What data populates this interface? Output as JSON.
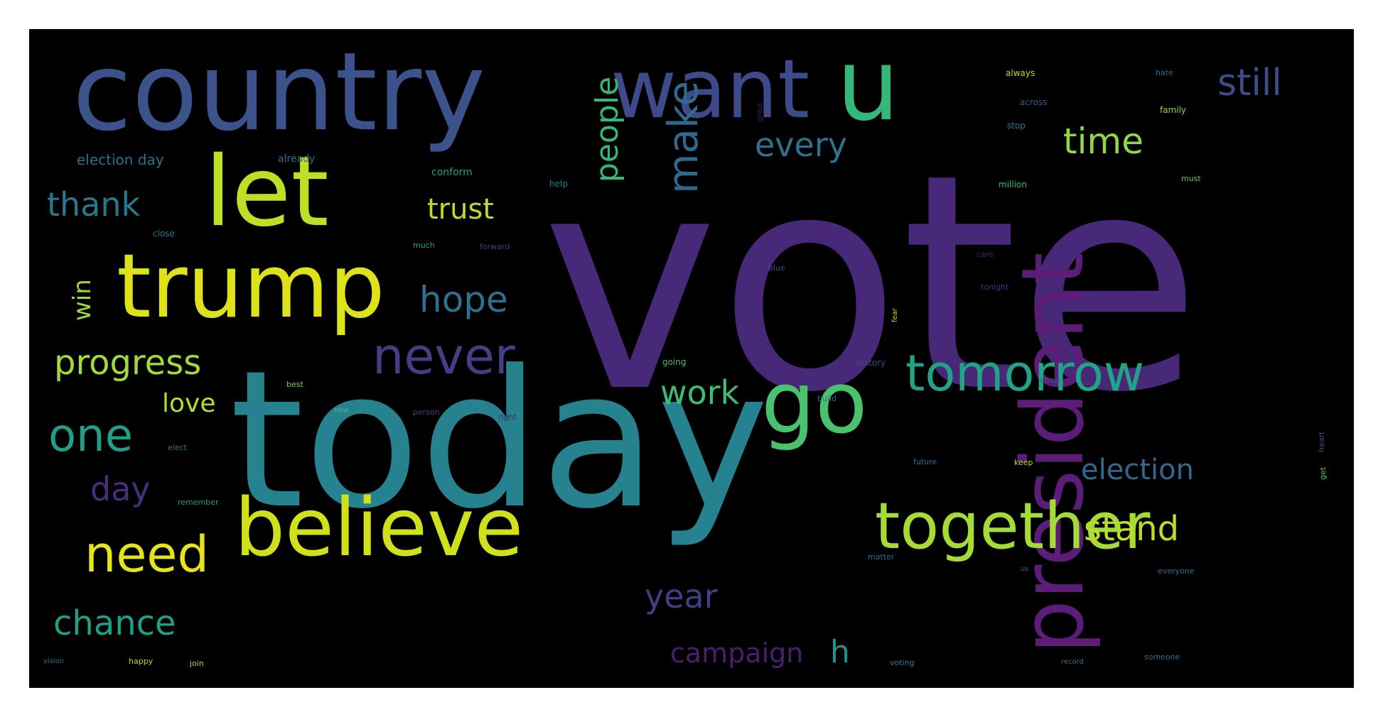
{
  "colors": {
    "background": "#000000",
    "page": "#ffffff"
  },
  "words": [
    {
      "text": "vote",
      "color": "#482878"
    },
    {
      "text": "today",
      "color": "#26828e"
    },
    {
      "text": "country",
      "color": "#3b528b"
    },
    {
      "text": "want",
      "color": "#3e4a89"
    },
    {
      "text": "u",
      "color": "#35b779"
    },
    {
      "text": "let",
      "color": "#bddf26"
    },
    {
      "text": "trump",
      "color": "#dde318"
    },
    {
      "text": "president",
      "color": "#5b1d78"
    },
    {
      "text": "believe",
      "color": "#d0e11c"
    },
    {
      "text": "together",
      "color": "#a5db36"
    },
    {
      "text": "go",
      "color": "#4ac16d"
    },
    {
      "text": "never",
      "color": "#433e85"
    },
    {
      "text": "tomorrow",
      "color": "#20a386"
    },
    {
      "text": "make",
      "color": "#31688e"
    },
    {
      "text": "people",
      "color": "#35b779"
    },
    {
      "text": "still",
      "color": "#3e4c8a"
    },
    {
      "text": "every",
      "color": "#2c728e"
    },
    {
      "text": "time",
      "color": "#8fd744"
    },
    {
      "text": "thank",
      "color": "#2a788e"
    },
    {
      "text": "trust",
      "color": "#b8de29"
    },
    {
      "text": "hope",
      "color": "#2c728e"
    },
    {
      "text": "progress",
      "color": "#a2da37"
    },
    {
      "text": "one",
      "color": "#1f9e89"
    },
    {
      "text": "love",
      "color": "#b5de2b"
    },
    {
      "text": "work",
      "color": "#3dbc74"
    },
    {
      "text": "need",
      "color": "#e5e419"
    },
    {
      "text": "day",
      "color": "#472d7b"
    },
    {
      "text": "win",
      "color": "#9bd93c"
    },
    {
      "text": "chance",
      "color": "#1fa088"
    },
    {
      "text": "year",
      "color": "#433e85"
    },
    {
      "text": "campaign",
      "color": "#481f70"
    },
    {
      "text": "h",
      "color": "#21918c"
    },
    {
      "text": "election",
      "color": "#31688e"
    },
    {
      "text": "stand",
      "color": "#bade28"
    },
    {
      "text": "election day",
      "color": "#2d708e"
    },
    {
      "text": "already",
      "color": "#2e6e8e"
    },
    {
      "text": "conform",
      "color": "#1fa088"
    },
    {
      "text": "help",
      "color": "#26828e"
    },
    {
      "text": "close",
      "color": "#2a788e"
    },
    {
      "text": "much",
      "color": "#20a386"
    },
    {
      "text": "forward",
      "color": "#443983"
    },
    {
      "text": "always",
      "color": "#b5de2b"
    },
    {
      "text": "across",
      "color": "#38598c"
    },
    {
      "text": "stop",
      "color": "#2a788e"
    },
    {
      "text": "great",
      "color": "#481c6e"
    },
    {
      "text": "hate",
      "color": "#2d708e"
    },
    {
      "text": "family",
      "color": "#8fd744"
    },
    {
      "text": "million",
      "color": "#3dbc74"
    },
    {
      "text": "must",
      "color": "#5ec962"
    },
    {
      "text": "care",
      "color": "#482071"
    },
    {
      "text": "blue",
      "color": "#3b528b"
    },
    {
      "text": "tonight",
      "color": "#46307e"
    },
    {
      "text": "fear",
      "color": "#b8de29"
    },
    {
      "text": "going",
      "color": "#3dbc74"
    },
    {
      "text": "history",
      "color": "#3e4a89"
    },
    {
      "text": "best",
      "color": "#75d054"
    },
    {
      "text": "show",
      "color": "#3b528b"
    },
    {
      "text": "new",
      "color": "#3dbc74"
    },
    {
      "text": "person",
      "color": "#414487"
    },
    {
      "text": "right",
      "color": "#482475"
    },
    {
      "text": "build",
      "color": "#2d708e"
    },
    {
      "text": "elect",
      "color": "#2a788e"
    },
    {
      "text": "future",
      "color": "#31688e"
    },
    {
      "text": "keep",
      "color": "#b8de29"
    },
    {
      "text": "heart",
      "color": "#3e4a89"
    },
    {
      "text": "remember",
      "color": "#1f9e89"
    },
    {
      "text": "get",
      "color": "#4ac16d"
    },
    {
      "text": "matter",
      "color": "#2e6e8e"
    },
    {
      "text": "us",
      "color": "#3b528b"
    },
    {
      "text": "everyone",
      "color": "#2d708e"
    },
    {
      "text": "vision",
      "color": "#2e6e8e"
    },
    {
      "text": "happy",
      "color": "#b5de2b"
    },
    {
      "text": "join",
      "color": "#a5db36"
    },
    {
      "text": "voting",
      "color": "#26828e"
    },
    {
      "text": "record",
      "color": "#2c728e"
    },
    {
      "text": "someone",
      "color": "#2e6e8e"
    }
  ]
}
